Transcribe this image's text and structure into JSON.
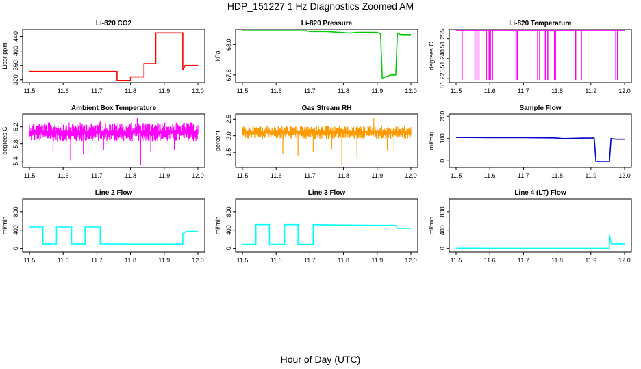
{
  "title": "HDP_151227  1 Hz Diagnostics Zoomed AM",
  "xlabel": "Hour of Day (UTC)",
  "x_ticks": [
    "11.5",
    "11.6",
    "11.7",
    "11.8",
    "11.9",
    "12.0"
  ],
  "chart_data": [
    {
      "type": "line",
      "title": "Li-820 CO2",
      "ylabel": "Licor ppm",
      "color": "#ff0000",
      "xlim": [
        11.5,
        12.0
      ],
      "ylim": [
        312,
        460
      ],
      "yticks": [
        "320",
        "360",
        "400",
        "440"
      ],
      "series": [
        {
          "x": [
            11.5,
            11.76,
            11.76,
            11.8,
            11.8,
            11.84,
            11.84,
            11.875,
            11.875,
            11.955,
            11.955,
            11.962,
            11.962,
            12.0
          ],
          "y": [
            343,
            343,
            318,
            318,
            328,
            328,
            365,
            365,
            450,
            450,
            348,
            360,
            360,
            360
          ]
        }
      ]
    },
    {
      "type": "line",
      "title": "Li-820 Pressure",
      "ylabel": "kPa",
      "color": "#00cc00",
      "xlim": [
        11.5,
        12.0
      ],
      "ylim": [
        67.5,
        68.2
      ],
      "yticks": [
        "67.6",
        "68.0"
      ],
      "series": [
        {
          "x": [
            11.5,
            11.69,
            11.7,
            11.75,
            11.82,
            11.84,
            11.9,
            11.91,
            11.915,
            11.94,
            11.955,
            11.96,
            11.97,
            12.0
          ],
          "y": [
            68.18,
            68.18,
            68.17,
            68.17,
            68.15,
            68.16,
            68.16,
            68.14,
            67.56,
            67.6,
            67.6,
            68.15,
            68.13,
            68.13
          ]
        }
      ]
    },
    {
      "type": "line",
      "title": "Li-820 Temperature",
      "ylabel": "degrees C",
      "color": "#ff00ff",
      "xlim": [
        11.5,
        12.0
      ],
      "ylim": [
        51.222,
        51.262
      ],
      "yticks": [
        "51.225",
        "51.240",
        "51.255"
      ],
      "series": [
        {
          "x": [
            11.5,
            12.0
          ],
          "y": [
            51.261,
            51.261
          ]
        }
      ],
      "dropouts_x": [
        11.518,
        11.556,
        11.562,
        11.568,
        11.59,
        11.598,
        11.602,
        11.608,
        11.678,
        11.682,
        11.742,
        11.748,
        11.765,
        11.772,
        11.792,
        11.795,
        11.855,
        11.872,
        11.974,
        11.979
      ],
      "dropout_y": 51.224
    },
    {
      "type": "line",
      "title": "Ambient Box Temperature",
      "ylabel": "degrees C",
      "color": "#ff00ff",
      "xlim": [
        11.5,
        12.0
      ],
      "ylim": [
        5.25,
        6.5
      ],
      "yticks": [
        "5.4",
        "5.8",
        "6.2"
      ],
      "band": [
        5.85,
        6.3
      ],
      "noise_base": 6.05,
      "spikes": [
        {
          "x": 11.82,
          "y": 6.42
        },
        {
          "x": 11.71,
          "y": 6.34
        },
        {
          "x": 11.622,
          "y": 5.42
        },
        {
          "x": 11.83,
          "y": 5.3
        },
        {
          "x": 11.57,
          "y": 5.6
        },
        {
          "x": 11.66,
          "y": 5.55
        },
        {
          "x": 11.72,
          "y": 5.65
        },
        {
          "x": 11.86,
          "y": 5.6
        },
        {
          "x": 11.93,
          "y": 5.65
        }
      ]
    },
    {
      "type": "line",
      "title": "Gas Stream RH",
      "ylabel": "percent",
      "color": "#ff9900",
      "xlim": [
        11.5,
        12.0
      ],
      "ylim": [
        1.05,
        2.65
      ],
      "yticks": [
        "1.5",
        "2.0",
        "2.5"
      ],
      "band": [
        1.9,
        2.3
      ],
      "noise_base": 2.1,
      "spikes": [
        {
          "x": 11.795,
          "y": 1.12
        },
        {
          "x": 11.84,
          "y": 1.35
        },
        {
          "x": 11.62,
          "y": 1.45
        },
        {
          "x": 11.665,
          "y": 1.4
        },
        {
          "x": 11.71,
          "y": 1.5
        },
        {
          "x": 11.93,
          "y": 1.55
        },
        {
          "x": 11.89,
          "y": 2.55
        },
        {
          "x": 11.765,
          "y": 1.6
        },
        {
          "x": 11.95,
          "y": 1.5
        }
      ]
    },
    {
      "type": "line",
      "title": "Sample Flow",
      "ylabel": "ml/min",
      "color": "#0000cc",
      "xlim": [
        11.5,
        12.0
      ],
      "ylim": [
        -30,
        210
      ],
      "yticks": [
        "0",
        "100",
        "200"
      ],
      "series": [
        {
          "x": [
            11.5,
            11.6,
            11.7,
            11.79,
            11.82,
            11.88,
            11.91,
            11.915,
            11.955,
            11.96,
            11.975,
            12.0
          ],
          "y": [
            105,
            104,
            104,
            103,
            100,
            102,
            102,
            -2,
            -2,
            100,
            97,
            97
          ]
        }
      ]
    },
    {
      "type": "line",
      "title": "Line 2 Flow",
      "ylabel": "ml/min",
      "color": "#00ffff",
      "xlim": [
        11.5,
        12.0
      ],
      "ylim": [
        -80,
        1080
      ],
      "yticks": [
        "0",
        "400",
        "800"
      ],
      "series": [
        {
          "x": [
            11.5,
            11.54,
            11.54,
            11.58,
            11.58,
            11.625,
            11.625,
            11.665,
            11.665,
            11.71,
            11.71,
            11.8,
            11.9,
            11.955,
            11.955,
            11.965,
            11.965,
            12.0
          ],
          "y": [
            470,
            470,
            100,
            100,
            470,
            470,
            100,
            100,
            470,
            470,
            100,
            95,
            95,
            95,
            320,
            370,
            370,
            370
          ]
        }
      ]
    },
    {
      "type": "line",
      "title": "Line 3 Flow",
      "ylabel": "ml/min",
      "color": "#00ffff",
      "xlim": [
        11.5,
        12.0
      ],
      "ylim": [
        -80,
        1080
      ],
      "yticks": [
        "0",
        "400",
        "800"
      ],
      "series": [
        {
          "x": [
            11.5,
            11.54,
            11.54,
            11.58,
            11.58,
            11.625,
            11.625,
            11.665,
            11.665,
            11.71,
            11.71,
            11.8,
            11.9,
            11.955,
            11.96,
            12.0
          ],
          "y": [
            90,
            90,
            520,
            520,
            90,
            90,
            520,
            520,
            90,
            90,
            520,
            510,
            505,
            505,
            440,
            440
          ]
        }
      ]
    },
    {
      "type": "line",
      "title": "Line 4 (LT) Flow",
      "ylabel": "ml/min",
      "color": "#00ffff",
      "xlim": [
        11.5,
        12.0
      ],
      "ylim": [
        -80,
        1080
      ],
      "yticks": [
        "0",
        "400",
        "800"
      ],
      "series": [
        {
          "x": [
            11.5,
            11.7,
            11.9,
            11.955,
            11.955,
            11.96,
            11.962,
            11.975,
            12.0
          ],
          "y": [
            5,
            3,
            3,
            3,
            300,
            120,
            100,
            100,
            100
          ]
        }
      ]
    }
  ]
}
